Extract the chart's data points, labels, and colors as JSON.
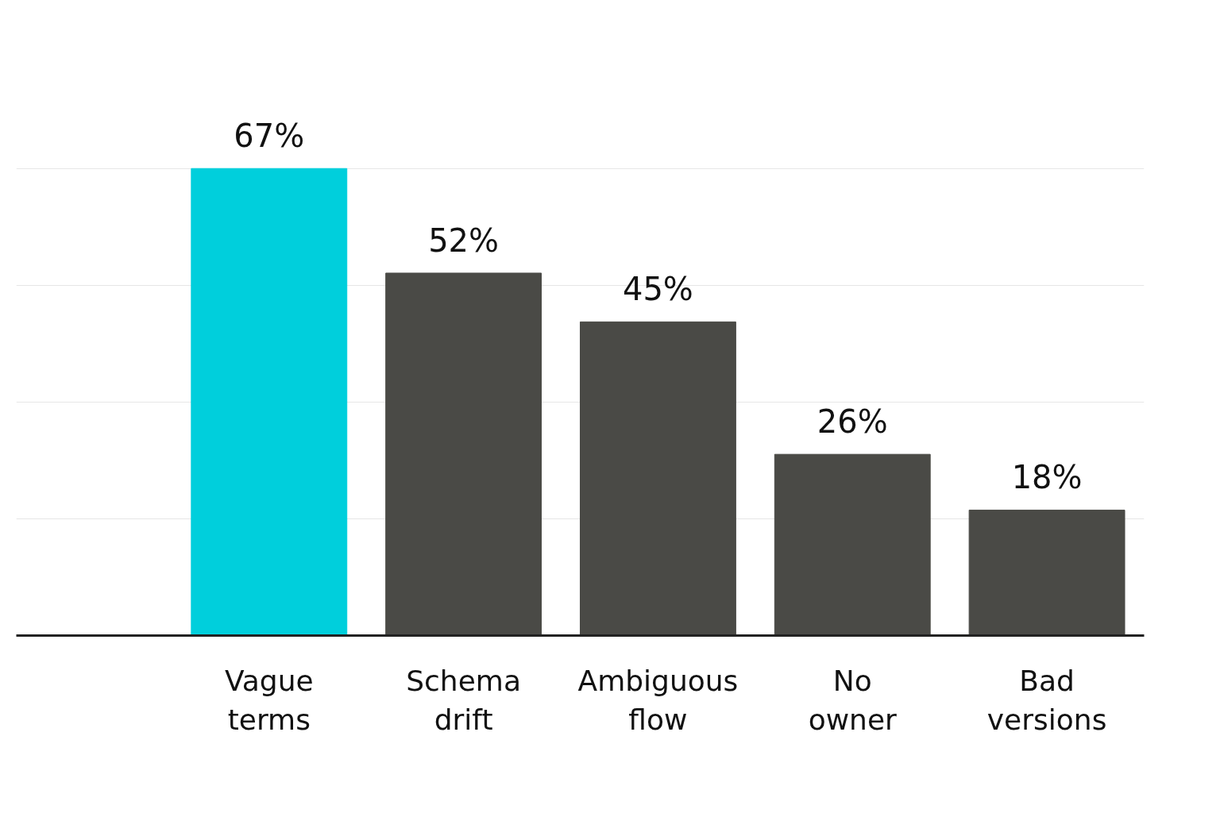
{
  "chart_data": {
    "type": "bar",
    "categories": [
      "Vague terms",
      "Schema drift",
      "Ambiguous flow",
      "No owner",
      "Bad versions"
    ],
    "values": [
      67,
      52,
      45,
      26,
      18
    ],
    "colors": [
      "#00cfdc",
      "#4a4a46",
      "#4a4a46",
      "#4a4a46",
      "#4a4a46"
    ],
    "value_labels": [
      "67%",
      "52%",
      "45%",
      "26%",
      "18%"
    ],
    "yticks": [
      {
        "value": 0,
        "label": null
      },
      {
        "value": 16.75,
        "label": null
      },
      {
        "value": 33.5,
        "label": null
      },
      {
        "value": 50.25,
        "label": null
      },
      {
        "value": 67,
        "label": null
      }
    ],
    "grid": "y",
    "tick_labels": "x"
  }
}
